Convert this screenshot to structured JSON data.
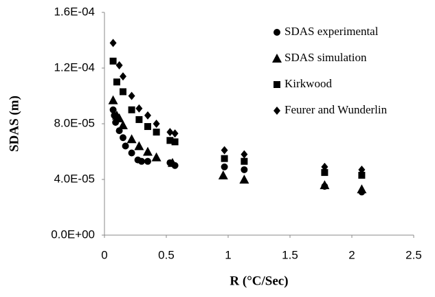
{
  "chart_data": {
    "type": "scatter",
    "x_label": "R (°C/Sec)",
    "y_label": "SDAS (m)",
    "xlim": [
      0,
      2.5
    ],
    "xticks": [
      0,
      0.5,
      1,
      1.5,
      2,
      2.5
    ],
    "ylim": [
      0,
      0.00016
    ],
    "yticks": [
      {
        "value": 0,
        "label": "0.0E+00"
      },
      {
        "value": 4e-05,
        "label": "4.0E-05"
      },
      {
        "value": 8e-05,
        "label": "8.0E-05"
      },
      {
        "value": 0.00012,
        "label": "1.2E-04"
      },
      {
        "value": 0.00016,
        "label": "1.6E-04"
      }
    ],
    "grid": false,
    "legend": "upper right",
    "series": [
      {
        "name": "SDAS experimental",
        "color": "#000000",
        "marker": "circle",
        "x": [
          0.07,
          0.08,
          0.09,
          0.12,
          0.15,
          0.17,
          0.22,
          0.27,
          0.3,
          0.35,
          0.53,
          0.57,
          0.97,
          1.13,
          1.78,
          2.08
        ],
        "y": [
          9e-05,
          8.6e-05,
          8.1e-05,
          7.5e-05,
          7e-05,
          6.4e-05,
          5.9e-05,
          5.4e-05,
          5.3e-05,
          5.3e-05,
          5.2e-05,
          5e-05,
          4.9e-05,
          4.7e-05,
          3.5e-05,
          3.1e-05
        ]
      },
      {
        "name": "SDAS simulation",
        "color": "#000000",
        "marker": "triangle",
        "x": [
          0.07,
          0.1,
          0.12,
          0.15,
          0.22,
          0.28,
          0.35,
          0.42,
          0.55,
          0.96,
          1.13,
          1.78,
          2.08
        ],
        "y": [
          9.7e-05,
          8.6e-05,
          8.4e-05,
          7.9e-05,
          6.9e-05,
          6.4e-05,
          6e-05,
          5.6e-05,
          5.2e-05,
          4.3e-05,
          4e-05,
          3.6e-05,
          3.3e-05
        ]
      },
      {
        "name": "Kirkwood",
        "color": "#000000",
        "marker": "square",
        "x": [
          0.07,
          0.1,
          0.15,
          0.22,
          0.28,
          0.35,
          0.42,
          0.53,
          0.57,
          0.97,
          1.13,
          1.78,
          2.08
        ],
        "y": [
          0.000125,
          0.00011,
          0.000103,
          9e-05,
          8.3e-05,
          7.8e-05,
          7.4e-05,
          6.8e-05,
          6.7e-05,
          5.5e-05,
          5.3e-05,
          4.5e-05,
          4.3e-05
        ]
      },
      {
        "name": "Feurer and Wunderlin",
        "color": "#000000",
        "marker": "diamond",
        "x": [
          0.07,
          0.12,
          0.15,
          0.22,
          0.28,
          0.35,
          0.42,
          0.53,
          0.57,
          0.97,
          1.13,
          1.78,
          2.08
        ],
        "y": [
          0.000138,
          0.000122,
          0.000114,
          0.0001,
          9.1e-05,
          8.6e-05,
          8e-05,
          7.4e-05,
          7.3e-05,
          6.1e-05,
          5.8e-05,
          4.9e-05,
          4.7e-05
        ]
      }
    ]
  }
}
